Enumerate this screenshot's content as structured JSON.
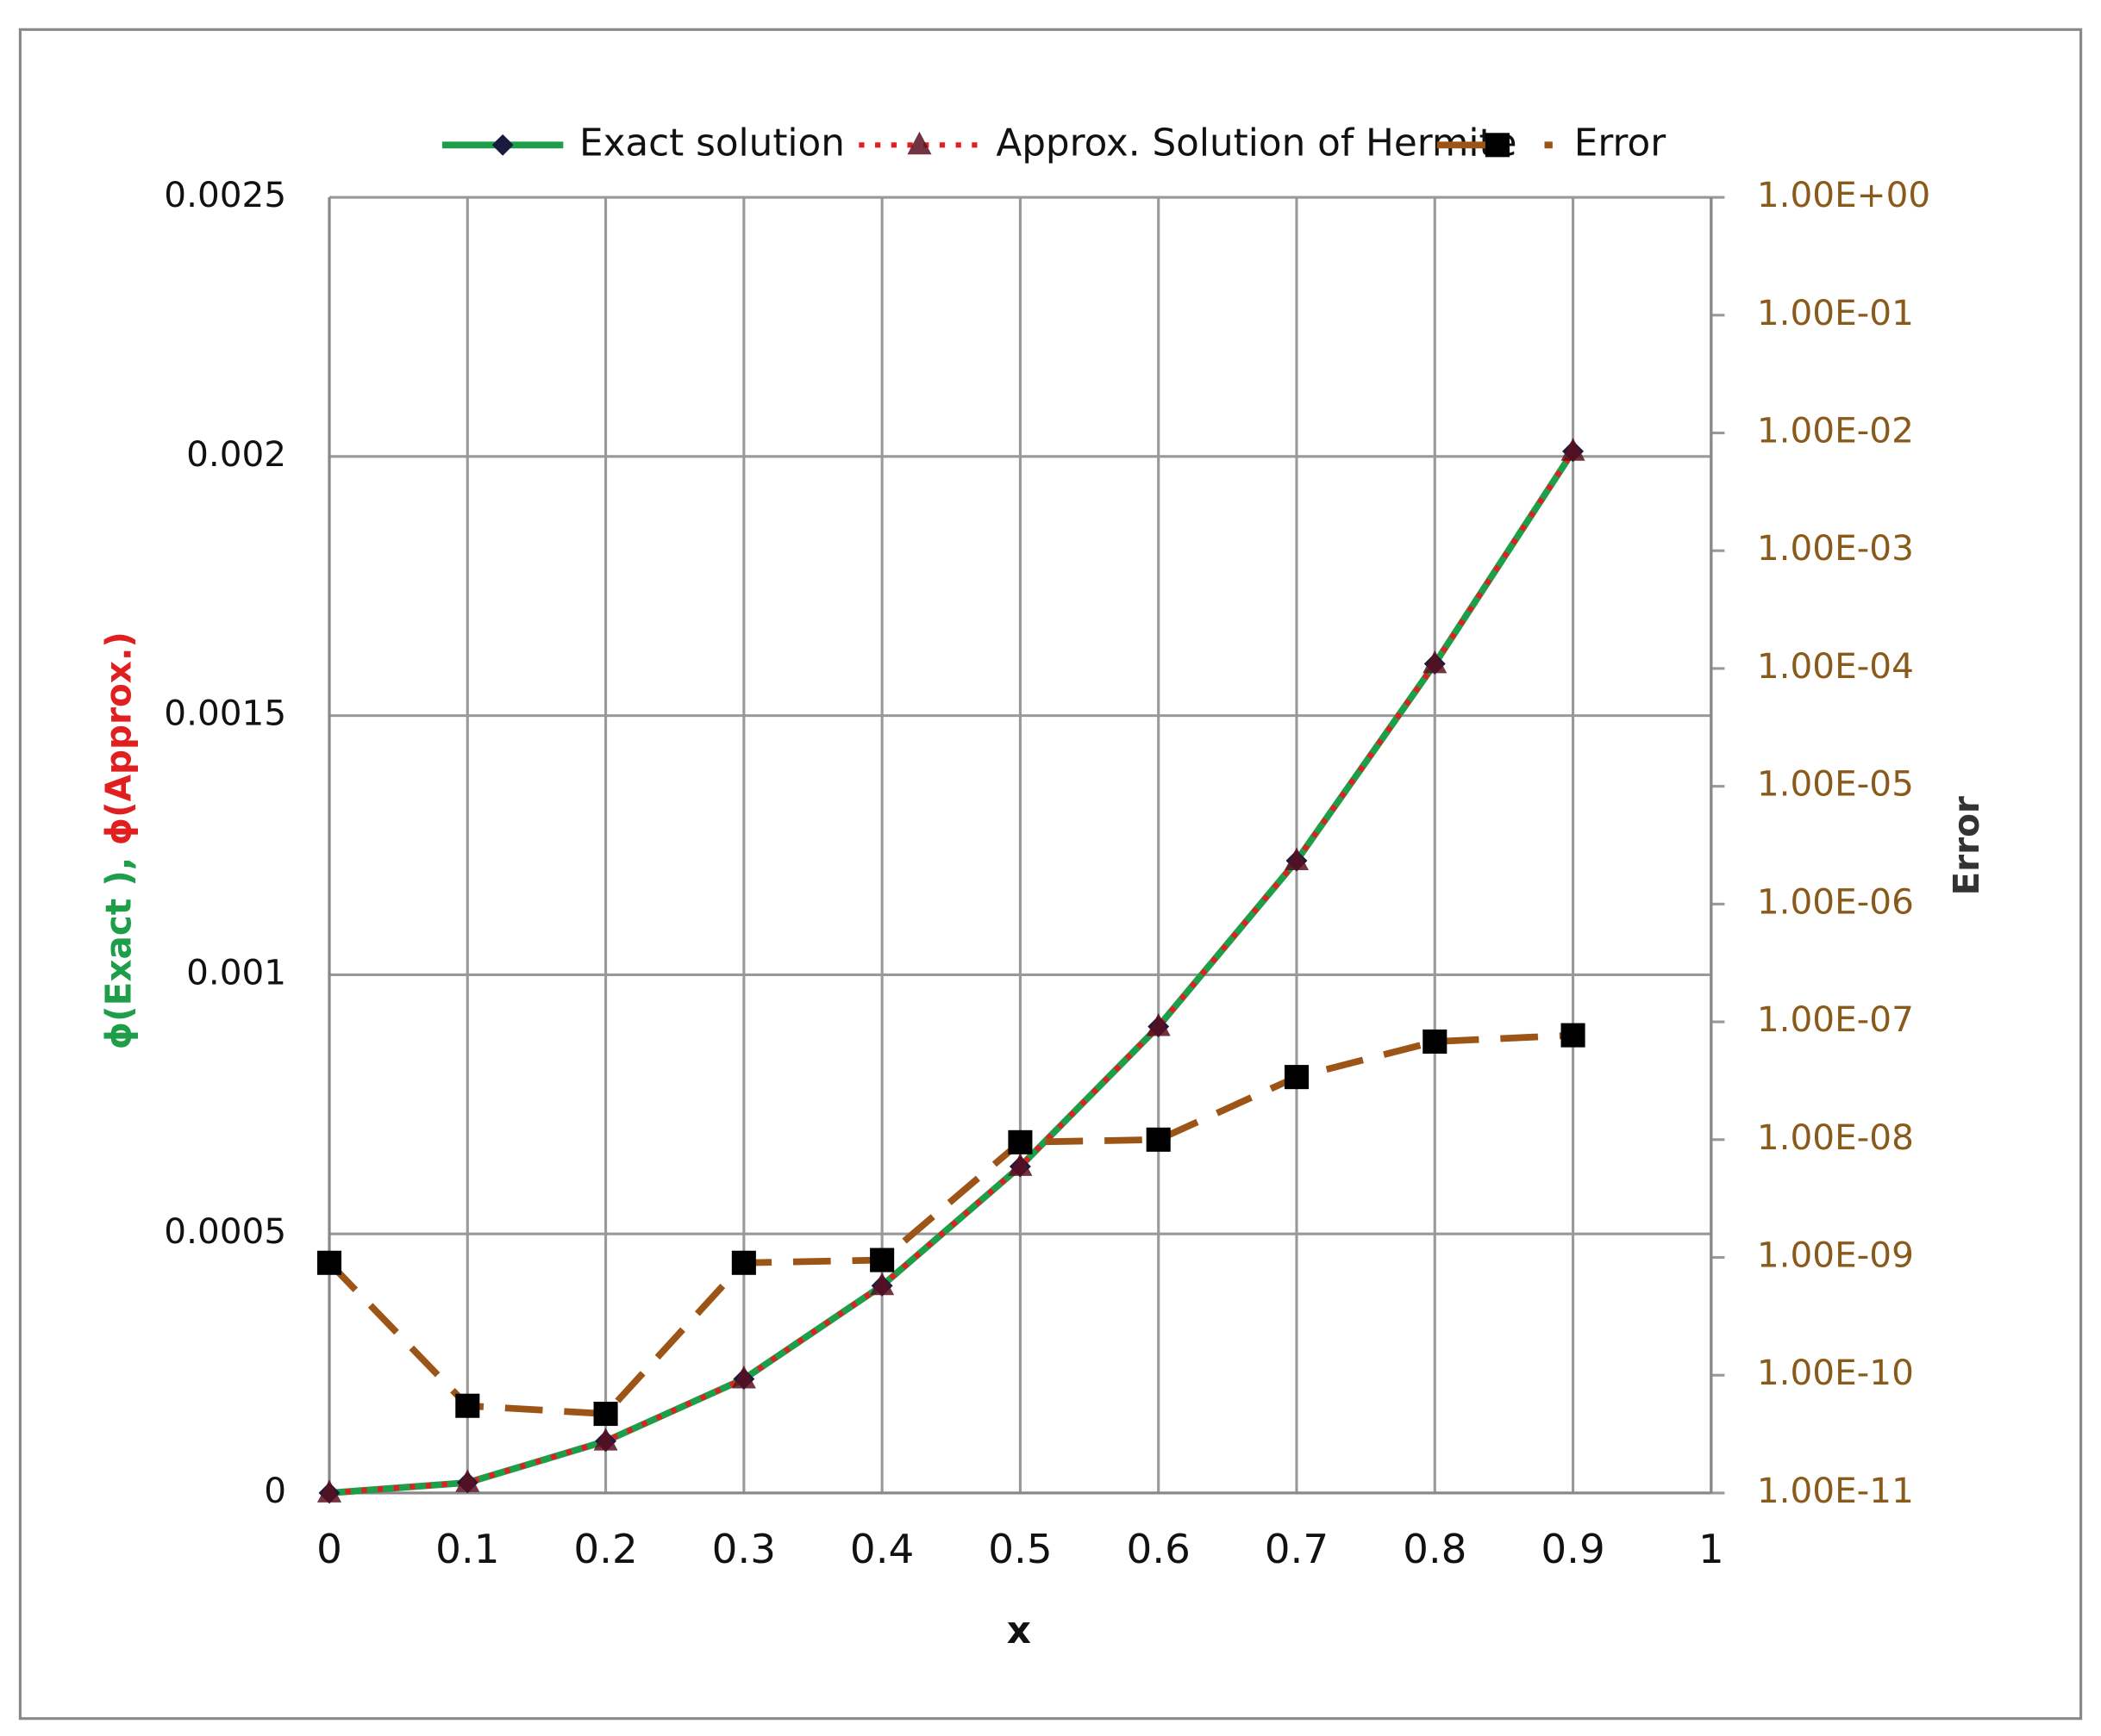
{
  "chart_data": {
    "type": "line",
    "x": [
      0,
      0.1,
      0.2,
      0.3,
      0.4,
      0.5,
      0.6,
      0.7,
      0.8,
      0.9
    ],
    "series": [
      {
        "name": "Exact solution",
        "color": "#1f9e4a",
        "marker_color": "#1a1a40",
        "values": [
          0,
          2e-05,
          0.0001,
          0.00022,
          0.0004,
          0.00063,
          0.0009,
          0.00122,
          0.0016,
          0.00201
        ]
      },
      {
        "name": "Approx. Solution of Hermite",
        "color": "#e02020",
        "marker_color": "#5a1020",
        "values": [
          0,
          2e-05,
          0.0001,
          0.00022,
          0.0004,
          0.00063,
          0.0009,
          0.00122,
          0.0016,
          0.00201
        ]
      },
      {
        "name": "Error",
        "color": "#9c5516",
        "marker_color": "#000000",
        "axis": "y2",
        "values": [
          9e-10,
          5.5e-11,
          4.7e-11,
          9e-10,
          9.5e-10,
          9.5e-09,
          1e-08,
          3.4e-08,
          6.8e-08,
          7.7e-08
        ]
      }
    ],
    "xlim": [
      0,
      1
    ],
    "xticks": [
      0,
      0.1,
      0.2,
      0.3,
      0.4,
      0.5,
      0.6,
      0.7,
      0.8,
      0.9,
      1
    ],
    "ylim": [
      0,
      0.0025
    ],
    "yticks": [
      0,
      0.0005,
      0.001,
      0.0015,
      0.002,
      0.0025
    ],
    "y2lim": [
      1e-11,
      1
    ],
    "y2log": true,
    "y2ticks": [
      {
        "value": 1e-11,
        "label": "1.00E-11"
      },
      {
        "value": 1e-10,
        "label": "1.00E-10"
      },
      {
        "value": 1e-09,
        "label": "1.00E-09"
      },
      {
        "value": 1e-08,
        "label": "1.00E-08"
      },
      {
        "value": 1e-07,
        "label": "1.00E-07"
      },
      {
        "value": 1e-06,
        "label": "1.00E-06"
      },
      {
        "value": 1e-05,
        "label": "1.00E-05"
      },
      {
        "value": 0.0001,
        "label": "1.00E-04"
      },
      {
        "value": 0.001,
        "label": "1.00E-03"
      },
      {
        "value": 0.01,
        "label": "1.00E-02"
      },
      {
        "value": 0.1,
        "label": "1.00E-01"
      },
      {
        "value": 1,
        "label": "1.00E+00"
      }
    ],
    "xlabel": "x",
    "ylabel_exact": "ϕ(Exact ),",
    "ylabel_approx": "ϕ(Approx.)",
    "y2label": "Error",
    "grid": true,
    "legend": "top"
  }
}
